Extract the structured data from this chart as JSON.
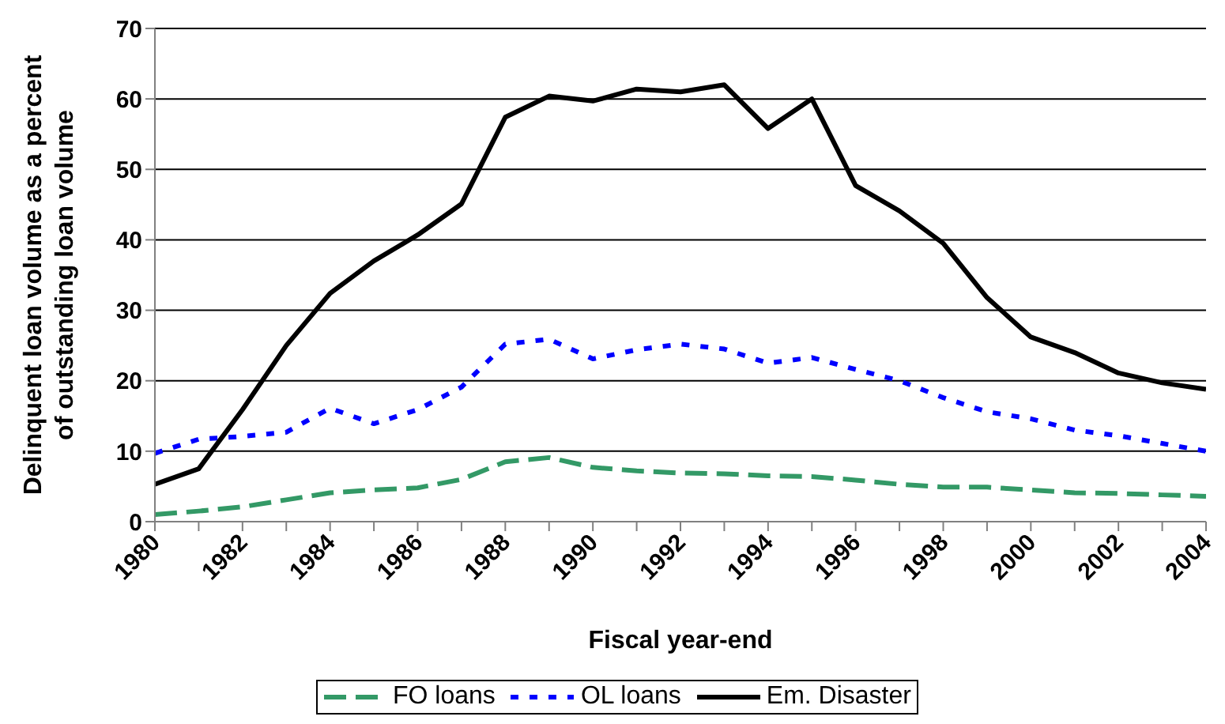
{
  "chart_data": {
    "type": "line",
    "xlabel": "Fiscal year-end",
    "ylabel": "Delinquent loan volume as a percent of outstanding loan volume",
    "x": [
      1980,
      1981,
      1982,
      1983,
      1984,
      1985,
      1986,
      1987,
      1988,
      1989,
      1990,
      1991,
      1992,
      1993,
      1994,
      1995,
      1996,
      1997,
      1998,
      1999,
      2000,
      2001,
      2002,
      2003,
      2004
    ],
    "series": [
      {
        "name": "FO loans",
        "color": "#339966",
        "line_style": "dashed",
        "values": [
          1.0,
          1.5,
          2.1,
          3.1,
          4.1,
          4.5,
          4.8,
          6.0,
          8.5,
          9.1,
          7.7,
          7.2,
          6.9,
          6.8,
          6.5,
          6.4,
          5.9,
          5.3,
          4.9,
          4.9,
          4.5,
          4.1,
          4.0,
          3.8,
          3.6
        ]
      },
      {
        "name": "OL loans",
        "color": "#0000ff",
        "line_style": "dotted",
        "values": [
          9.7,
          11.7,
          12.1,
          12.7,
          16.1,
          13.9,
          15.9,
          19.1,
          25.2,
          25.9,
          23.1,
          24.4,
          25.2,
          24.5,
          22.5,
          23.3,
          21.6,
          20.0,
          17.6,
          15.6,
          14.6,
          13.0,
          12.2,
          11.1,
          10.0
        ]
      },
      {
        "name": "Em. Disaster",
        "color": "#000000",
        "line_style": "solid",
        "values": [
          5.3,
          7.5,
          15.9,
          25,
          32.4,
          37,
          40.7,
          45.1,
          57.4,
          60.4,
          59.7,
          61.4,
          61.0,
          62.0,
          55.8,
          60.0,
          47.7,
          44.1,
          39.5,
          31.8,
          26.2,
          24.0,
          21.1,
          19.7,
          18.8
        ]
      }
    ],
    "xlim": [
      1980,
      2004
    ],
    "xticks": [
      1980,
      {
        "value": 1981,
        "label": null
      },
      1982,
      {
        "value": 1983,
        "label": null
      },
      1984,
      {
        "value": 1985,
        "label": null
      },
      1986,
      {
        "value": 1987,
        "label": null
      },
      1988,
      {
        "value": 1989,
        "label": null
      },
      1990,
      {
        "value": 1991,
        "label": null
      },
      1992,
      {
        "value": 1993,
        "label": null
      },
      1994,
      {
        "value": 1995,
        "label": null
      },
      1996,
      {
        "value": 1997,
        "label": null
      },
      1998,
      {
        "value": 1999,
        "label": null
      },
      2000,
      {
        "value": 2001,
        "label": null
      },
      2002,
      {
        "value": 2003,
        "label": null
      },
      2004
    ],
    "ylim": [
      0,
      70
    ],
    "yticks": [
      0,
      10,
      20,
      30,
      40,
      50,
      60,
      70
    ],
    "grid": "y",
    "legend": "bottom",
    "marker": "none"
  }
}
